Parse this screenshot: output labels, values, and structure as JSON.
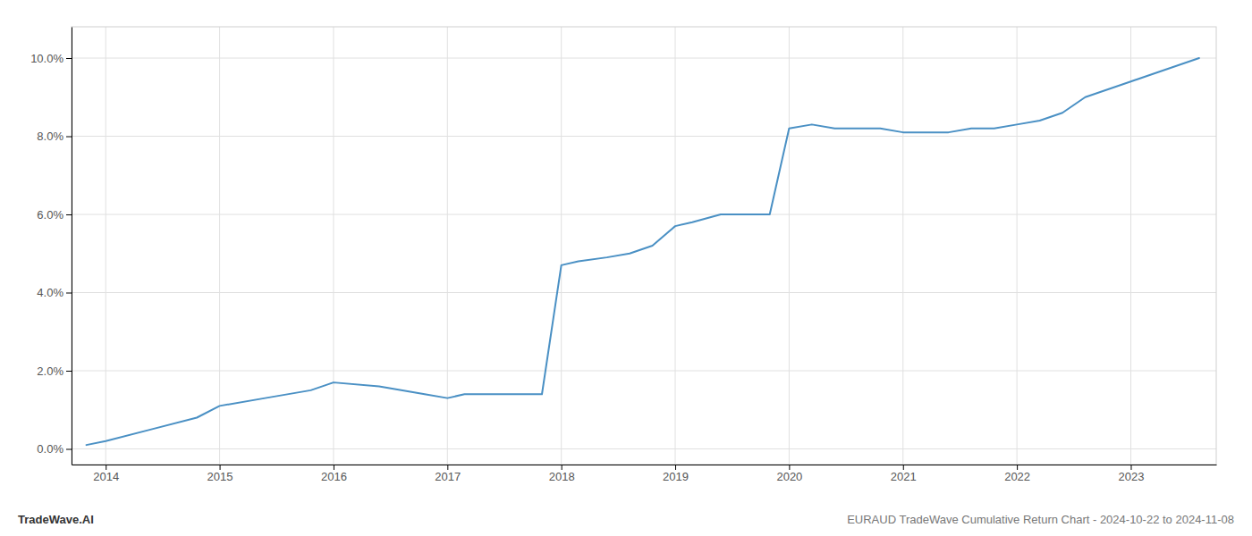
{
  "chart_data": {
    "type": "line",
    "x": [
      2013.83,
      2014.0,
      2014.4,
      2014.8,
      2015.0,
      2015.4,
      2015.8,
      2016.0,
      2016.4,
      2016.8,
      2017.0,
      2017.15,
      2017.83,
      2018.0,
      2018.15,
      2018.4,
      2018.6,
      2018.8,
      2019.0,
      2019.15,
      2019.4,
      2019.83,
      2020.0,
      2020.2,
      2020.4,
      2020.8,
      2021.0,
      2021.2,
      2021.4,
      2021.6,
      2021.8,
      2022.0,
      2022.2,
      2022.4,
      2022.6,
      2022.8,
      2023.0,
      2023.2,
      2023.4,
      2023.6
    ],
    "values": [
      0.001,
      0.002,
      0.005,
      0.008,
      0.011,
      0.013,
      0.015,
      0.017,
      0.016,
      0.014,
      0.013,
      0.014,
      0.014,
      0.047,
      0.048,
      0.049,
      0.05,
      0.052,
      0.057,
      0.058,
      0.06,
      0.06,
      0.082,
      0.083,
      0.082,
      0.082,
      0.081,
      0.081,
      0.081,
      0.082,
      0.082,
      0.083,
      0.084,
      0.086,
      0.09,
      0.092,
      0.094,
      0.096,
      0.098,
      0.1
    ],
    "color": "#4a90c4",
    "xlim": [
      2013.7,
      2023.75
    ],
    "ylim": [
      -0.004,
      0.108
    ],
    "xticks": [
      2014,
      2015,
      2016,
      2017,
      2018,
      2019,
      2020,
      2021,
      2022,
      2023
    ],
    "yticks": [
      {
        "value": 0.0,
        "label": "0.0%"
      },
      {
        "value": 0.02,
        "label": "2.0%"
      },
      {
        "value": 0.04,
        "label": "4.0%"
      },
      {
        "value": 0.06,
        "label": "6.0%"
      },
      {
        "value": 0.08,
        "label": "8.0%"
      },
      {
        "value": 0.1,
        "label": "10.0%"
      }
    ],
    "grid": true,
    "annotations": [
      "TradeWave.AI",
      "EURAUD TradeWave Cumulative Return Chart - 2024-10-22 to 2024-11-08"
    ]
  }
}
